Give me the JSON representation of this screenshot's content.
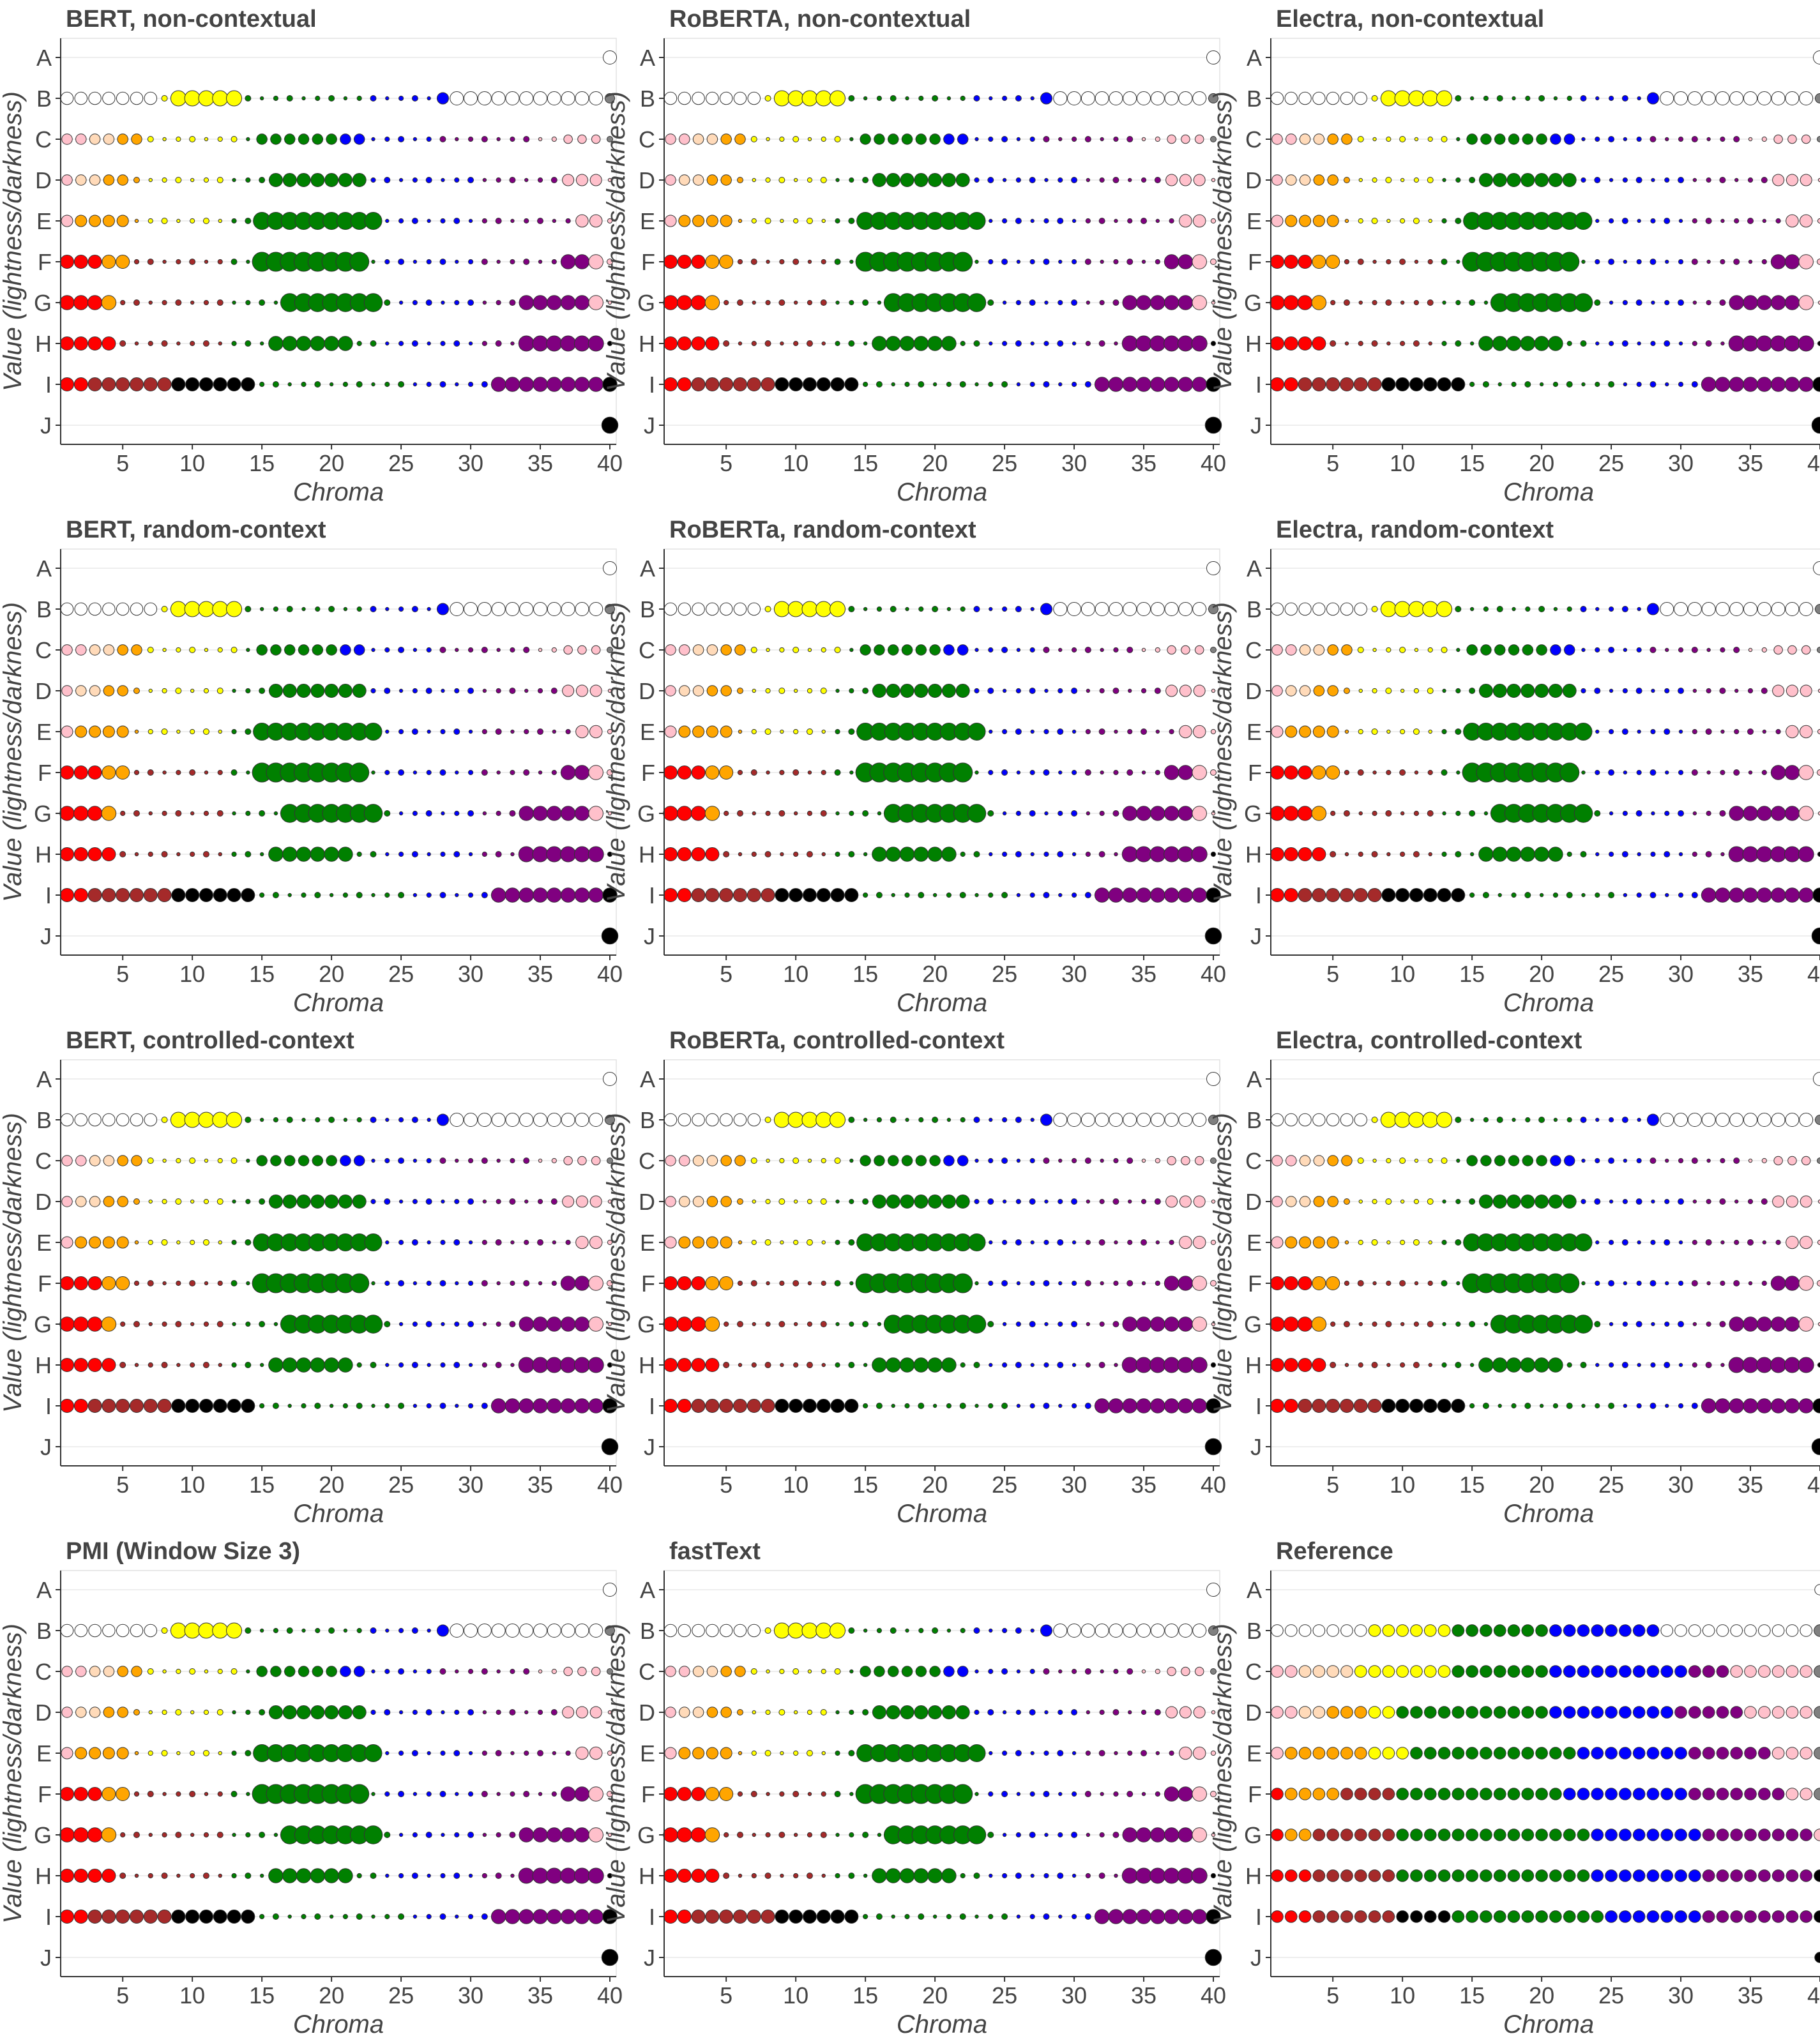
{
  "chart_data": {
    "type": "scatter",
    "xlabel": "Chroma",
    "ylabel": "Value (lightness/darkness)",
    "xticks": [
      5,
      10,
      15,
      20,
      25,
      30,
      35,
      40
    ],
    "xlim": [
      1,
      40
    ],
    "value_rows": [
      "A",
      "B",
      "C",
      "D",
      "E",
      "F",
      "G",
      "H",
      "I",
      "J"
    ],
    "colors": {
      "red": "#ff0000",
      "orange": "#ffa500",
      "yellow": "#ffff00",
      "green": "#008000",
      "blue": "#0000ff",
      "purple": "#800080",
      "pink": "#ffc0cb",
      "brown": "#a52a2a",
      "black": "#000000",
      "white": "#ffffff",
      "grey": "#808080",
      "peach": "#ffdab9",
      "darkred": "#8b0000"
    },
    "panels": [
      {
        "title": "BERT, non-contextual",
        "variant": "bert"
      },
      {
        "title": "RoBERTA, non-contextual",
        "variant": "roberta"
      },
      {
        "title": "Electra, non-contextual",
        "variant": "electra"
      },
      {
        "title": "BERT, random-context",
        "variant": "bert"
      },
      {
        "title": "RoBERTa, random-context",
        "variant": "roberta"
      },
      {
        "title": "Electra, random-context",
        "variant": "electra"
      },
      {
        "title": "BERT, controlled-context",
        "variant": "bert"
      },
      {
        "title": "RoBERTa, controlled-context",
        "variant": "roberta"
      },
      {
        "title": "Electra, controlled-context",
        "variant": "electra"
      },
      {
        "title": "PMI (Window Size 3)",
        "variant": "bert"
      },
      {
        "title": "fastText",
        "variant": "roberta"
      },
      {
        "title": "Reference",
        "variant": "reference"
      }
    ]
  }
}
